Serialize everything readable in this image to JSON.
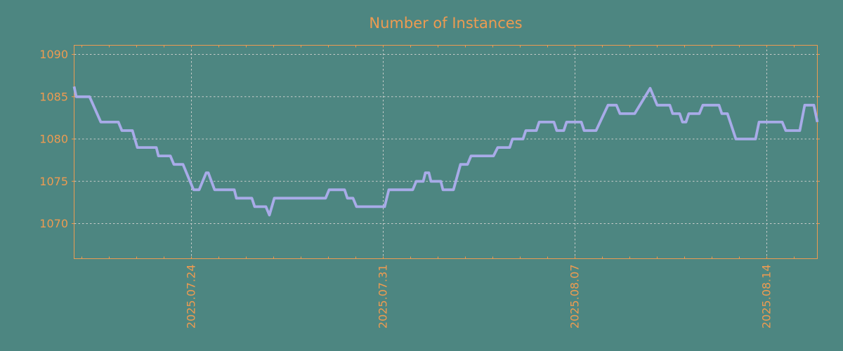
{
  "window": {
    "title": "Number of Instances"
  },
  "colors": {
    "background": "#4D8681",
    "frame_orange": "#ED9B51",
    "line_lavender": "#A8ABE8",
    "grid_gray": "#C8CCCA"
  },
  "chart_data": {
    "type": "line",
    "title": "Number of Instances",
    "legend": false,
    "grid": true,
    "x_axis": {
      "unit": "days relative to 2025-07-24 00:00",
      "range": [
        -4.282,
        22.846
      ],
      "major_tick_positions": [
        0,
        7,
        14,
        21
      ],
      "major_tick_labels": [
        "2025.07.24",
        "2025.07.31",
        "2025.08.07",
        "2025.08.14"
      ],
      "minor_tick_interval_days": 1,
      "label_rotation_deg": -90
    },
    "y_axis": {
      "unit": "instances",
      "range": [
        1065.85,
        1091.08
      ],
      "tick_values": [
        1070,
        1075,
        1080,
        1085,
        1090
      ],
      "tick_labels": [
        "1070",
        "1075",
        "1080",
        "1085",
        "1090"
      ]
    },
    "series": [
      {
        "name": "number-of-instances",
        "points": [
          [
            -4.282,
            1086.2
          ],
          [
            -4.205,
            1085
          ],
          [
            -3.718,
            1085
          ],
          [
            -3.308,
            1082
          ],
          [
            -2.667,
            1082
          ],
          [
            -2.538,
            1081
          ],
          [
            -2.154,
            1081
          ],
          [
            -1.974,
            1079
          ],
          [
            -1.282,
            1079
          ],
          [
            -1.205,
            1078
          ],
          [
            -0.769,
            1078
          ],
          [
            -0.641,
            1077
          ],
          [
            -0.308,
            1077
          ],
          [
            0.077,
            1074
          ],
          [
            0.282,
            1074
          ],
          [
            0.538,
            1076
          ],
          [
            0.615,
            1076
          ],
          [
            0.846,
            1074
          ],
          [
            1.564,
            1074
          ],
          [
            1.641,
            1073
          ],
          [
            2.205,
            1073
          ],
          [
            2.308,
            1072
          ],
          [
            2.718,
            1072
          ],
          [
            2.846,
            1071
          ],
          [
            3.026,
            1073
          ],
          [
            4.897,
            1073
          ],
          [
            5.026,
            1074
          ],
          [
            5.59,
            1074
          ],
          [
            5.692,
            1073
          ],
          [
            5.897,
            1073
          ],
          [
            6.026,
            1072
          ],
          [
            7.051,
            1072
          ],
          [
            7.205,
            1074
          ],
          [
            8.077,
            1074
          ],
          [
            8.205,
            1075
          ],
          [
            8.462,
            1075
          ],
          [
            8.538,
            1076
          ],
          [
            8.667,
            1076
          ],
          [
            8.744,
            1075
          ],
          [
            9.103,
            1075
          ],
          [
            9.179,
            1074
          ],
          [
            9.564,
            1074
          ],
          [
            9.821,
            1077
          ],
          [
            10.077,
            1077
          ],
          [
            10.205,
            1078
          ],
          [
            11.026,
            1078
          ],
          [
            11.179,
            1079
          ],
          [
            11.615,
            1079
          ],
          [
            11.718,
            1080
          ],
          [
            12.103,
            1080
          ],
          [
            12.205,
            1081
          ],
          [
            12.59,
            1081
          ],
          [
            12.692,
            1082
          ],
          [
            13.231,
            1082
          ],
          [
            13.333,
            1081
          ],
          [
            13.59,
            1081
          ],
          [
            13.692,
            1082
          ],
          [
            14.231,
            1082
          ],
          [
            14.333,
            1081
          ],
          [
            14.769,
            1081
          ],
          [
            15.205,
            1084
          ],
          [
            15.513,
            1084
          ],
          [
            15.641,
            1083
          ],
          [
            16.179,
            1083
          ],
          [
            16.744,
            1086
          ],
          [
            17.0,
            1084
          ],
          [
            17.462,
            1084
          ],
          [
            17.564,
            1083
          ],
          [
            17.821,
            1083
          ],
          [
            17.923,
            1082
          ],
          [
            18.051,
            1082
          ],
          [
            18.154,
            1083
          ],
          [
            18.538,
            1083
          ],
          [
            18.667,
            1084
          ],
          [
            19.256,
            1084
          ],
          [
            19.359,
            1083
          ],
          [
            19.564,
            1083
          ],
          [
            19.872,
            1080
          ],
          [
            20.59,
            1080
          ],
          [
            20.718,
            1082
          ],
          [
            21.564,
            1082
          ],
          [
            21.692,
            1081
          ],
          [
            22.205,
            1081
          ],
          [
            22.385,
            1084
          ],
          [
            22.718,
            1084
          ],
          [
            22.846,
            1082
          ]
        ]
      }
    ]
  }
}
